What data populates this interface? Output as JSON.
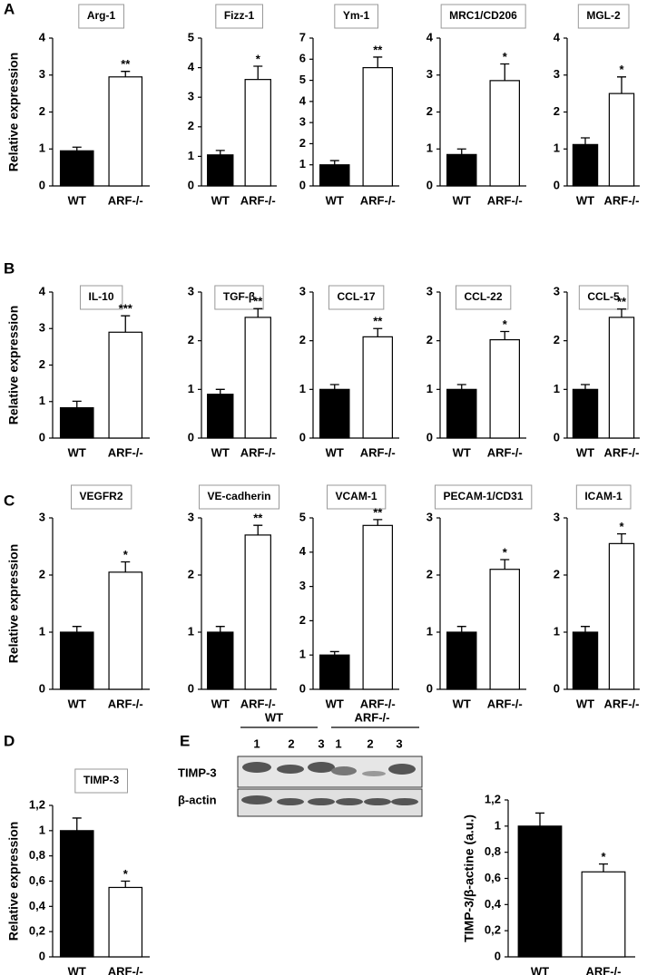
{
  "panels": [
    "A",
    "B",
    "C",
    "D",
    "E"
  ],
  "blot": {
    "groups": [
      "WT",
      "ARF-/-"
    ],
    "lanes": [
      "1",
      "2",
      "3",
      "1",
      "2",
      "3"
    ],
    "rows": [
      "TIMP-3",
      "β-actin"
    ]
  },
  "chart_data": [
    {
      "type": "bar",
      "title": "Arg-1",
      "ylabel": "Relative expression",
      "categories": [
        "WT",
        "ARF-/-"
      ],
      "values": [
        0.95,
        2.95
      ],
      "errors": [
        0.1,
        0.15
      ],
      "significance": "**",
      "colors": [
        "#000000",
        "#ffffff"
      ],
      "ylim": [
        0,
        4
      ],
      "yticks": [
        0,
        1,
        2,
        3,
        4
      ]
    },
    {
      "type": "bar",
      "title": "Fizz-1",
      "categories": [
        "WT",
        "ARF-/-"
      ],
      "values": [
        1.05,
        3.6
      ],
      "errors": [
        0.15,
        0.45
      ],
      "significance": "*",
      "colors": [
        "#000000",
        "#ffffff"
      ],
      "ylim": [
        0,
        5
      ],
      "yticks": [
        0,
        1,
        2,
        3,
        4,
        5
      ]
    },
    {
      "type": "bar",
      "title": "Ym-1",
      "categories": [
        "WT",
        "ARF-/-"
      ],
      "values": [
        1.0,
        5.6
      ],
      "errors": [
        0.2,
        0.5
      ],
      "significance": "**",
      "colors": [
        "#000000",
        "#ffffff"
      ],
      "ylim": [
        0,
        7
      ],
      "yticks": [
        0,
        1,
        2,
        3,
        4,
        5,
        6,
        7
      ]
    },
    {
      "type": "bar",
      "title": "MRC1/CD206",
      "categories": [
        "WT",
        "ARF-/-"
      ],
      "values": [
        0.85,
        2.85
      ],
      "errors": [
        0.15,
        0.45
      ],
      "significance": "*",
      "colors": [
        "#000000",
        "#ffffff"
      ],
      "ylim": [
        0,
        4
      ],
      "yticks": [
        0,
        1,
        2,
        3,
        4
      ]
    },
    {
      "type": "bar",
      "title": "MGL-2",
      "categories": [
        "WT",
        "ARF-/-"
      ],
      "values": [
        1.12,
        2.5
      ],
      "errors": [
        0.18,
        0.45
      ],
      "significance": "*",
      "colors": [
        "#000000",
        "#ffffff"
      ],
      "ylim": [
        0,
        4
      ],
      "yticks": [
        0,
        1,
        2,
        3,
        4
      ]
    },
    {
      "type": "bar",
      "title": "IL-10",
      "ylabel": "Relative expression",
      "categories": [
        "WT",
        "ARF-/-"
      ],
      "values": [
        0.83,
        2.9
      ],
      "errors": [
        0.18,
        0.45
      ],
      "significance": "***",
      "colors": [
        "#000000",
        "#ffffff"
      ],
      "ylim": [
        0,
        4
      ],
      "yticks": [
        0,
        1,
        2,
        3,
        4
      ]
    },
    {
      "type": "bar",
      "title": "TGF-β",
      "categories": [
        "WT",
        "ARF-/-"
      ],
      "values": [
        0.9,
        2.48
      ],
      "errors": [
        0.1,
        0.18
      ],
      "significance": "**",
      "colors": [
        "#000000",
        "#ffffff"
      ],
      "ylim": [
        0,
        3
      ],
      "yticks": [
        0,
        1,
        2,
        3
      ]
    },
    {
      "type": "bar",
      "title": "CCL-17",
      "categories": [
        "WT",
        "ARF-/-"
      ],
      "values": [
        1.0,
        2.08
      ],
      "errors": [
        0.1,
        0.17
      ],
      "significance": "**",
      "colors": [
        "#000000",
        "#ffffff"
      ],
      "ylim": [
        0,
        3
      ],
      "yticks": [
        0,
        1,
        2,
        3
      ]
    },
    {
      "type": "bar",
      "title": "CCL-22",
      "categories": [
        "WT",
        "ARF-/-"
      ],
      "values": [
        1.0,
        2.02
      ],
      "errors": [
        0.1,
        0.17
      ],
      "significance": "*",
      "colors": [
        "#000000",
        "#ffffff"
      ],
      "ylim": [
        0,
        3
      ],
      "yticks": [
        0,
        1,
        2,
        3
      ]
    },
    {
      "type": "bar",
      "title": "CCL-5",
      "categories": [
        "WT",
        "ARF-/-"
      ],
      "values": [
        1.0,
        2.48
      ],
      "errors": [
        0.1,
        0.17
      ],
      "significance": "**",
      "colors": [
        "#000000",
        "#ffffff"
      ],
      "ylim": [
        0,
        3
      ],
      "yticks": [
        0,
        1,
        2,
        3
      ]
    },
    {
      "type": "bar",
      "title": "VEGFR2",
      "ylabel": "Relative expression",
      "categories": [
        "WT",
        "ARF-/-"
      ],
      "values": [
        1.0,
        2.05
      ],
      "errors": [
        0.1,
        0.18
      ],
      "significance": "*",
      "colors": [
        "#000000",
        "#ffffff"
      ],
      "ylim": [
        0,
        3
      ],
      "yticks": [
        0,
        1,
        2,
        3
      ]
    },
    {
      "type": "bar",
      "title": "VE-cadherin",
      "categories": [
        "WT",
        "ARF-/-"
      ],
      "values": [
        1.0,
        2.7
      ],
      "errors": [
        0.1,
        0.17
      ],
      "significance": "**",
      "colors": [
        "#000000",
        "#ffffff"
      ],
      "ylim": [
        0,
        3
      ],
      "yticks": [
        0,
        1,
        2,
        3
      ]
    },
    {
      "type": "bar",
      "title": "VCAM-1",
      "categories": [
        "WT",
        "ARF-/-"
      ],
      "values": [
        1.0,
        4.78
      ],
      "errors": [
        0.1,
        0.17
      ],
      "significance": "**",
      "colors": [
        "#000000",
        "#ffffff"
      ],
      "ylim": [
        0,
        5
      ],
      "yticks": [
        0,
        1,
        2,
        3,
        4,
        5
      ]
    },
    {
      "type": "bar",
      "title": "PECAM-1/CD31",
      "categories": [
        "WT",
        "ARF-/-"
      ],
      "values": [
        1.0,
        2.1
      ],
      "errors": [
        0.1,
        0.17
      ],
      "significance": "*",
      "colors": [
        "#000000",
        "#ffffff"
      ],
      "ylim": [
        0,
        3
      ],
      "yticks": [
        0,
        1,
        2,
        3
      ]
    },
    {
      "type": "bar",
      "title": "ICAM-1",
      "categories": [
        "WT",
        "ARF-/-"
      ],
      "values": [
        1.0,
        2.55
      ],
      "errors": [
        0.1,
        0.17
      ],
      "significance": "*",
      "colors": [
        "#000000",
        "#ffffff"
      ],
      "ylim": [
        0,
        3
      ],
      "yticks": [
        0,
        1,
        2,
        3
      ]
    },
    {
      "type": "bar",
      "title": "TIMP-3",
      "ylabel": "Relative expression",
      "categories": [
        "WT",
        "ARF-/-"
      ],
      "values": [
        1.0,
        0.55
      ],
      "errors": [
        0.1,
        0.05
      ],
      "significance": "*",
      "colors": [
        "#000000",
        "#ffffff"
      ],
      "ylim": [
        0,
        1.2
      ],
      "yticks": [
        0,
        {
          "value": 0.2,
          "label": "0,2"
        },
        {
          "value": 0.4,
          "label": "0,4"
        },
        {
          "value": 0.6,
          "label": "0,6"
        },
        {
          "value": 0.8,
          "label": "0,8"
        },
        1,
        {
          "value": 1.2,
          "label": "1,2"
        }
      ]
    },
    {
      "type": "bar",
      "ylabel": "TIMP-3/β-actine (a.u.)",
      "categories": [
        "WT",
        "ARF-/-"
      ],
      "values": [
        1.0,
        0.65
      ],
      "errors": [
        0.1,
        0.06
      ],
      "significance": "*",
      "colors": [
        "#000000",
        "#ffffff"
      ],
      "ylim": [
        0,
        1.2
      ],
      "yticks": [
        0,
        {
          "value": 0.2,
          "label": "0,2"
        },
        {
          "value": 0.4,
          "label": "0,4"
        },
        {
          "value": 0.6,
          "label": "0,6"
        },
        {
          "value": 0.8,
          "label": "0,8"
        },
        1,
        {
          "value": 1.2,
          "label": "1,2"
        }
      ]
    }
  ]
}
